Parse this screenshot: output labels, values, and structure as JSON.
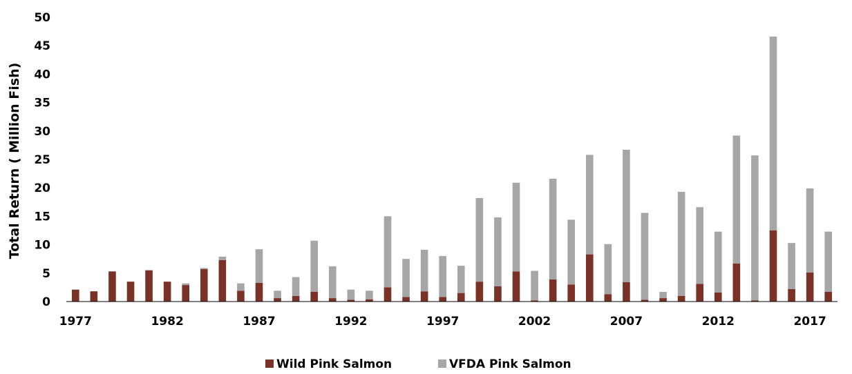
{
  "chart_data": {
    "type": "bar",
    "stacked": true,
    "ylabel": "Total Return ( Million Fish)",
    "xlabel": "",
    "ylim": [
      0,
      50
    ],
    "yticks": [
      0,
      5,
      10,
      15,
      20,
      25,
      30,
      35,
      40,
      45,
      50
    ],
    "x_tick_labels": [
      "1977",
      "1982",
      "1987",
      "1992",
      "1997",
      "2002",
      "2007",
      "2012",
      "2017"
    ],
    "grid": false,
    "legend_position": "bottom",
    "categories": [
      1977,
      1978,
      1979,
      1980,
      1981,
      1982,
      1983,
      1984,
      1985,
      1986,
      1987,
      1988,
      1989,
      1990,
      1991,
      1992,
      1993,
      1994,
      1995,
      1996,
      1997,
      1998,
      1999,
      2000,
      2001,
      2002,
      2003,
      2004,
      2005,
      2006,
      2007,
      2008,
      2009,
      2010,
      2011,
      2012,
      2013,
      2014,
      2015,
      2016,
      2017,
      2018
    ],
    "series": [
      {
        "name": "Wild Pink Salmon",
        "color": "#7B3226",
        "values": [
          2.1,
          1.8,
          5.3,
          3.5,
          5.5,
          3.5,
          2.9,
          5.7,
          7.3,
          1.9,
          3.3,
          0.6,
          1.0,
          1.7,
          0.6,
          0.3,
          0.4,
          2.5,
          0.8,
          1.8,
          0.8,
          1.5,
          3.5,
          2.7,
          5.3,
          0.2,
          3.9,
          3.0,
          8.3,
          1.3,
          3.4,
          0.3,
          0.6,
          1.0,
          3.1,
          1.6,
          6.7,
          0.2,
          12.5,
          2.2,
          5.1,
          1.7
        ]
      },
      {
        "name": "VFDA Pink Salmon",
        "color": "#A6A6A6",
        "values": [
          0,
          0,
          0,
          0,
          0,
          0,
          0.3,
          0.2,
          0.6,
          1.3,
          5.9,
          1.3,
          3.3,
          9.0,
          5.6,
          1.8,
          1.5,
          12.5,
          6.7,
          7.3,
          7.2,
          4.8,
          14.7,
          12.1,
          15.6,
          5.2,
          17.7,
          11.4,
          17.5,
          8.8,
          23.3,
          15.3,
          1.1,
          18.3,
          13.5,
          10.7,
          22.5,
          25.5,
          34.1,
          8.1,
          14.8,
          10.6
        ]
      }
    ]
  }
}
